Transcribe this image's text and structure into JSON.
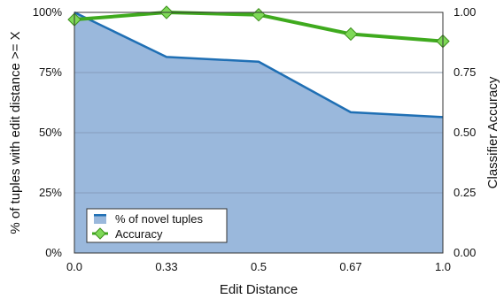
{
  "chart_data": {
    "type": "area",
    "x": [
      "0.0",
      "0.33",
      "0.5",
      "0.67",
      "1.0"
    ],
    "xlabel": "Edit Distance",
    "ylabel": "% of tuples with edit distance >= X",
    "y2label": "Classifier Accuracy",
    "ylim": [
      0,
      100
    ],
    "y2lim": [
      0,
      1
    ],
    "yticks": [
      "0%",
      "25%",
      "50%",
      "75%",
      "100%"
    ],
    "y2ticks": [
      "0.00",
      "0.25",
      "0.50",
      "0.75",
      "1.00"
    ],
    "grid": "horizontal",
    "legend_position": "bottom-left",
    "series": [
      {
        "name": "% of novel tuples",
        "type": "area",
        "axis": "left",
        "values": [
          100,
          81.5,
          79.5,
          58.5,
          56.5
        ],
        "color": "#1f6fb4",
        "fill": "#9ab8dc"
      },
      {
        "name": "Accuracy",
        "type": "line",
        "axis": "right",
        "values": [
          0.97,
          1.0,
          0.99,
          0.91,
          0.88
        ],
        "color": "#3faa1e",
        "marker": "diamond",
        "marker_color": "#7ed957"
      }
    ]
  }
}
